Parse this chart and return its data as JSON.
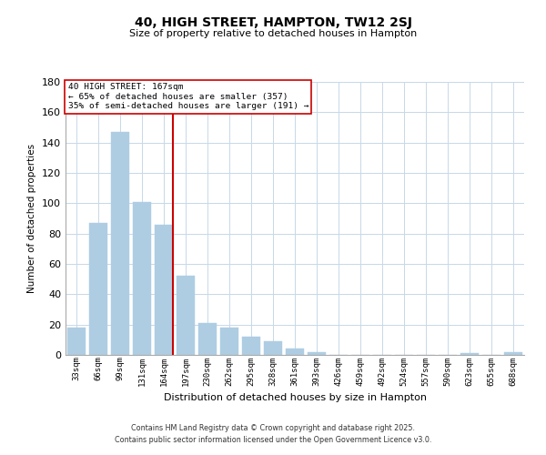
{
  "title": "40, HIGH STREET, HAMPTON, TW12 2SJ",
  "subtitle": "Size of property relative to detached houses in Hampton",
  "xlabel": "Distribution of detached houses by size in Hampton",
  "ylabel": "Number of detached properties",
  "bar_color": "#aecde3",
  "bar_edge_color": "#aecde3",
  "categories": [
    "33sqm",
    "66sqm",
    "99sqm",
    "131sqm",
    "164sqm",
    "197sqm",
    "230sqm",
    "262sqm",
    "295sqm",
    "328sqm",
    "361sqm",
    "393sqm",
    "426sqm",
    "459sqm",
    "492sqm",
    "524sqm",
    "557sqm",
    "590sqm",
    "623sqm",
    "655sqm",
    "688sqm"
  ],
  "values": [
    18,
    87,
    147,
    101,
    86,
    52,
    21,
    18,
    12,
    9,
    4,
    2,
    0,
    0,
    0,
    0,
    0,
    0,
    1,
    0,
    2
  ],
  "vline_x_index": 4,
  "vline_color": "#cc0000",
  "ylim": [
    0,
    180
  ],
  "yticks": [
    0,
    20,
    40,
    60,
    80,
    100,
    120,
    140,
    160,
    180
  ],
  "annotation_title": "40 HIGH STREET: 167sqm",
  "annotation_line1": "← 65% of detached houses are smaller (357)",
  "annotation_line2": "35% of semi-detached houses are larger (191) →",
  "annotation_box_color": "#cc0000",
  "footnote1": "Contains HM Land Registry data © Crown copyright and database right 2025.",
  "footnote2": "Contains public sector information licensed under the Open Government Licence v3.0.",
  "background_color": "#ffffff",
  "grid_color": "#c8d8e8"
}
